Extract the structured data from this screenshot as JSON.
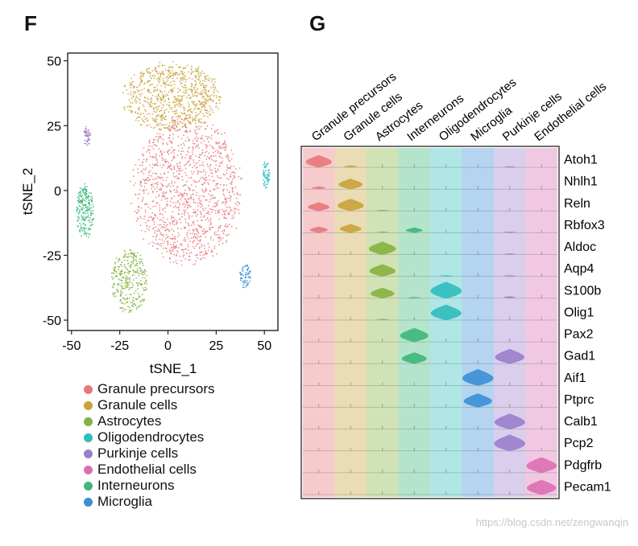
{
  "panels": {
    "f_label": "F",
    "g_label": "G"
  },
  "colors": {
    "Granule precursors": "#e8777a",
    "Granule cells": "#c9a23a",
    "Astrocytes": "#86b23f",
    "Oligodendrocytes": "#2fbcbc",
    "Purkinje cells": "#9a7fcc",
    "Endothelial cells": "#db6fb4",
    "Interneurons": "#3db77a",
    "Microglia": "#3b8fd6"
  },
  "chart_data": [
    {
      "type": "scatter",
      "title": "",
      "xlabel": "tSNE_1",
      "ylabel": "tSNE_2",
      "xlim": [
        -52,
        57
      ],
      "ylim": [
        -54,
        53
      ],
      "xticks": [
        -50,
        -25,
        0,
        25,
        50
      ],
      "yticks": [
        50,
        25,
        0,
        -25,
        -50
      ],
      "legend": [
        "Granule precursors",
        "Granule cells",
        "Astrocytes",
        "Oligodendrocytes",
        "Purkinje cells",
        "Endothelial cells",
        "Interneurons",
        "Microglia"
      ],
      "clusters": [
        {
          "name": "Granule precursors",
          "cx": 10,
          "cy": 0,
          "rx": 30,
          "ry": 30,
          "n": 1300
        },
        {
          "name": "Granule cells",
          "cx": 2,
          "cy": 36,
          "rx": 27,
          "ry": 14,
          "n": 800
        },
        {
          "name": "Interneurons",
          "cx": -43,
          "cy": -8,
          "rx": 5,
          "ry": 11,
          "n": 220
        },
        {
          "name": "Astrocytes",
          "cx": -20,
          "cy": -35,
          "rx": 10,
          "ry": 13,
          "n": 320
        },
        {
          "name": "Oligodendrocytes",
          "cx": 51,
          "cy": 6,
          "rx": 2,
          "ry": 6,
          "n": 60
        },
        {
          "name": "Microglia",
          "cx": 40,
          "cy": -33,
          "rx": 3,
          "ry": 5,
          "n": 60
        },
        {
          "name": "Purkinje cells",
          "cx": -42,
          "cy": 21,
          "rx": 2,
          "ry": 4,
          "n": 40
        },
        {
          "name": "Endothelial cells",
          "cx": -42,
          "cy": 23,
          "rx": 1,
          "ry": 2,
          "n": 6
        }
      ]
    },
    {
      "type": "violin",
      "title": "",
      "cell_types": [
        "Granule precursors",
        "Granule cells",
        "Astrocytes",
        "Interneurons",
        "Oligodendrocytes",
        "Microglia",
        "Purkinje cells",
        "Endothelial cells"
      ],
      "genes": [
        "Atoh1",
        "Nhlh1",
        "Reln",
        "Rbfox3",
        "Aldoc",
        "Aqp4",
        "S100b",
        "Olig1",
        "Pax2",
        "Gad1",
        "Aif1",
        "Ptprc",
        "Calb1",
        "Pcp2",
        "Pdgfrb",
        "Pecam1"
      ],
      "expression": [
        [
          0.7,
          0.1,
          0,
          0,
          0,
          0,
          0.05,
          0
        ],
        [
          0.15,
          0.6,
          0,
          0,
          0,
          0,
          0,
          0
        ],
        [
          0.5,
          0.7,
          0.05,
          0,
          0,
          0,
          0,
          0
        ],
        [
          0.35,
          0.5,
          0.05,
          0.3,
          0,
          0,
          0.05,
          0
        ],
        [
          0,
          0,
          0.75,
          0,
          0,
          0,
          0.05,
          0
        ],
        [
          0,
          0,
          0.7,
          0,
          0.05,
          0,
          0.05,
          0
        ],
        [
          0,
          0,
          0.6,
          0.05,
          0.95,
          0,
          0.1,
          0
        ],
        [
          0,
          0,
          0.05,
          0,
          0.9,
          0,
          0,
          0
        ],
        [
          0,
          0,
          0,
          0.8,
          0,
          0,
          0,
          0
        ],
        [
          0,
          0,
          0,
          0.65,
          0,
          0,
          0.85,
          0
        ],
        [
          0,
          0,
          0,
          0,
          0,
          0.95,
          0,
          0
        ],
        [
          0,
          0,
          0,
          0,
          0,
          0.8,
          0,
          0
        ],
        [
          0,
          0,
          0,
          0,
          0,
          0,
          0.9,
          0
        ],
        [
          0,
          0,
          0,
          0,
          0,
          0,
          0.95,
          0
        ],
        [
          0,
          0,
          0,
          0,
          0,
          0,
          0,
          0.9
        ],
        [
          0,
          0,
          0,
          0,
          0,
          0,
          0,
          0.85
        ]
      ]
    }
  ],
  "watermark": "https://blog.csdn.net/zengwanqin"
}
